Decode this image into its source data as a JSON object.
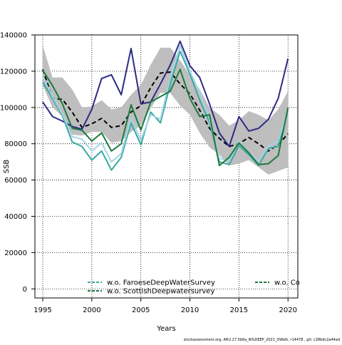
{
  "chart_data": {
    "type": "line",
    "xlabel": "Years",
    "ylabel": "SSB",
    "xlim": [
      1994.2,
      2021
    ],
    "ylim": [
      -5000,
      140000
    ],
    "x_ticks": [
      "1995",
      "2000",
      "2005",
      "2010",
      "2015",
      "2020"
    ],
    "x_tick_values": [
      1995,
      2000,
      2005,
      2010,
      2015,
      2020
    ],
    "y_ticks": [
      "0",
      "20000",
      "40000",
      "60000",
      "80000",
      "100000",
      "120000",
      "140000"
    ],
    "y_tick_values": [
      0,
      20000,
      40000,
      60000,
      80000,
      100000,
      120000,
      140000
    ],
    "grid": true,
    "legend_position": "bottom",
    "footer": "stockassessment.org, ARU.27.5b6a_WGDEEP_2021_DWalk, r14478 , git: c28bdc2a44ad",
    "x": [
      1995,
      1996,
      1997,
      1998,
      1999,
      2000,
      2001,
      2002,
      2003,
      2004,
      2005,
      2006,
      2007,
      2008,
      2009,
      2010,
      2011,
      2012,
      2013,
      2014,
      2015,
      2016,
      2017,
      2018,
      2019,
      2020
    ],
    "band": {
      "color": "#bebebe",
      "upper": [
        134000,
        116500,
        116500,
        110000,
        100000,
        100500,
        104000,
        99000,
        100000,
        107000,
        112500,
        123500,
        133000,
        133000,
        126000,
        118000,
        110000,
        100000,
        96000,
        90000,
        93000,
        98000,
        96000,
        93000,
        99000,
        109000
      ],
      "lower": [
        112000,
        100000,
        95000,
        85000,
        84500,
        86500,
        86500,
        80500,
        81500,
        86500,
        90000,
        99500,
        108000,
        108000,
        101000,
        96000,
        86000,
        78000,
        74000,
        68000,
        69000,
        71000,
        67000,
        63000,
        65000,
        67000
      ]
    },
    "series": [
      {
        "color": "#000000",
        "dash": "6,4",
        "width": 2,
        "values": [
          121000,
          105000,
          104500,
          97500,
          89000,
          91000,
          94000,
          89000,
          90000,
          97500,
          101000,
          111000,
          119000,
          119500,
          113000,
          107500,
          98500,
          88500,
          83000,
          78500,
          80000,
          83500,
          80000,
          76000,
          79500,
          85500
        ]
      },
      {
        "color": "#2d2a85",
        "dash": "",
        "width": 2,
        "values": [
          103000,
          95000,
          92500,
          89500,
          88000,
          99000,
          116000,
          118000,
          107000,
          132500,
          102000,
          103000,
          113000,
          123500,
          136500,
          123000,
          116500,
          102000,
          86000,
          78500,
          95000,
          87000,
          88500,
          93500,
          105000,
          127000
        ]
      },
      {
        "color": "#3aa9a1",
        "dash": "",
        "width": 2,
        "values": [
          114000,
          105000,
          95500,
          81000,
          78500,
          71000,
          76000,
          65500,
          72500,
          91500,
          79500,
          97500,
          91500,
          113000,
          131000,
          118500,
          104000,
          92000,
          70000,
          68500,
          79000,
          74000,
          68000,
          77500,
          78500,
          98500
        ]
      },
      {
        "color": "#a4d4e4",
        "dash": "",
        "width": 2,
        "values": [
          117000,
          106000,
          96500,
          84000,
          82500,
          76000,
          80500,
          70000,
          74500,
          94000,
          82000,
          96000,
          93500,
          116500,
          134000,
          120000,
          108000,
          93500,
          72000,
          70500,
          81500,
          75000,
          70500,
          78500,
          81500,
          99000
        ]
      },
      {
        "color": "#1b7a3f",
        "dash": "",
        "width": 2,
        "values": [
          120500,
          112000,
          102000,
          88500,
          87500,
          81500,
          86000,
          76000,
          80000,
          101500,
          87500,
          103000,
          106000,
          109000,
          121000,
          105000,
          95000,
          96000,
          68000,
          72500,
          80500,
          75000,
          68500,
          69000,
          73500,
          100000
        ]
      }
    ],
    "legend": [
      {
        "label": "w.o. FaroeseDeepWaterSurvey",
        "color": "#3aa9a1"
      },
      {
        "label": "w.o. ScottishDeepwatersurvey",
        "color": "#1b7a3f"
      },
      {
        "label": "w.o. Co",
        "color": "#1b7a3f"
      }
    ]
  }
}
